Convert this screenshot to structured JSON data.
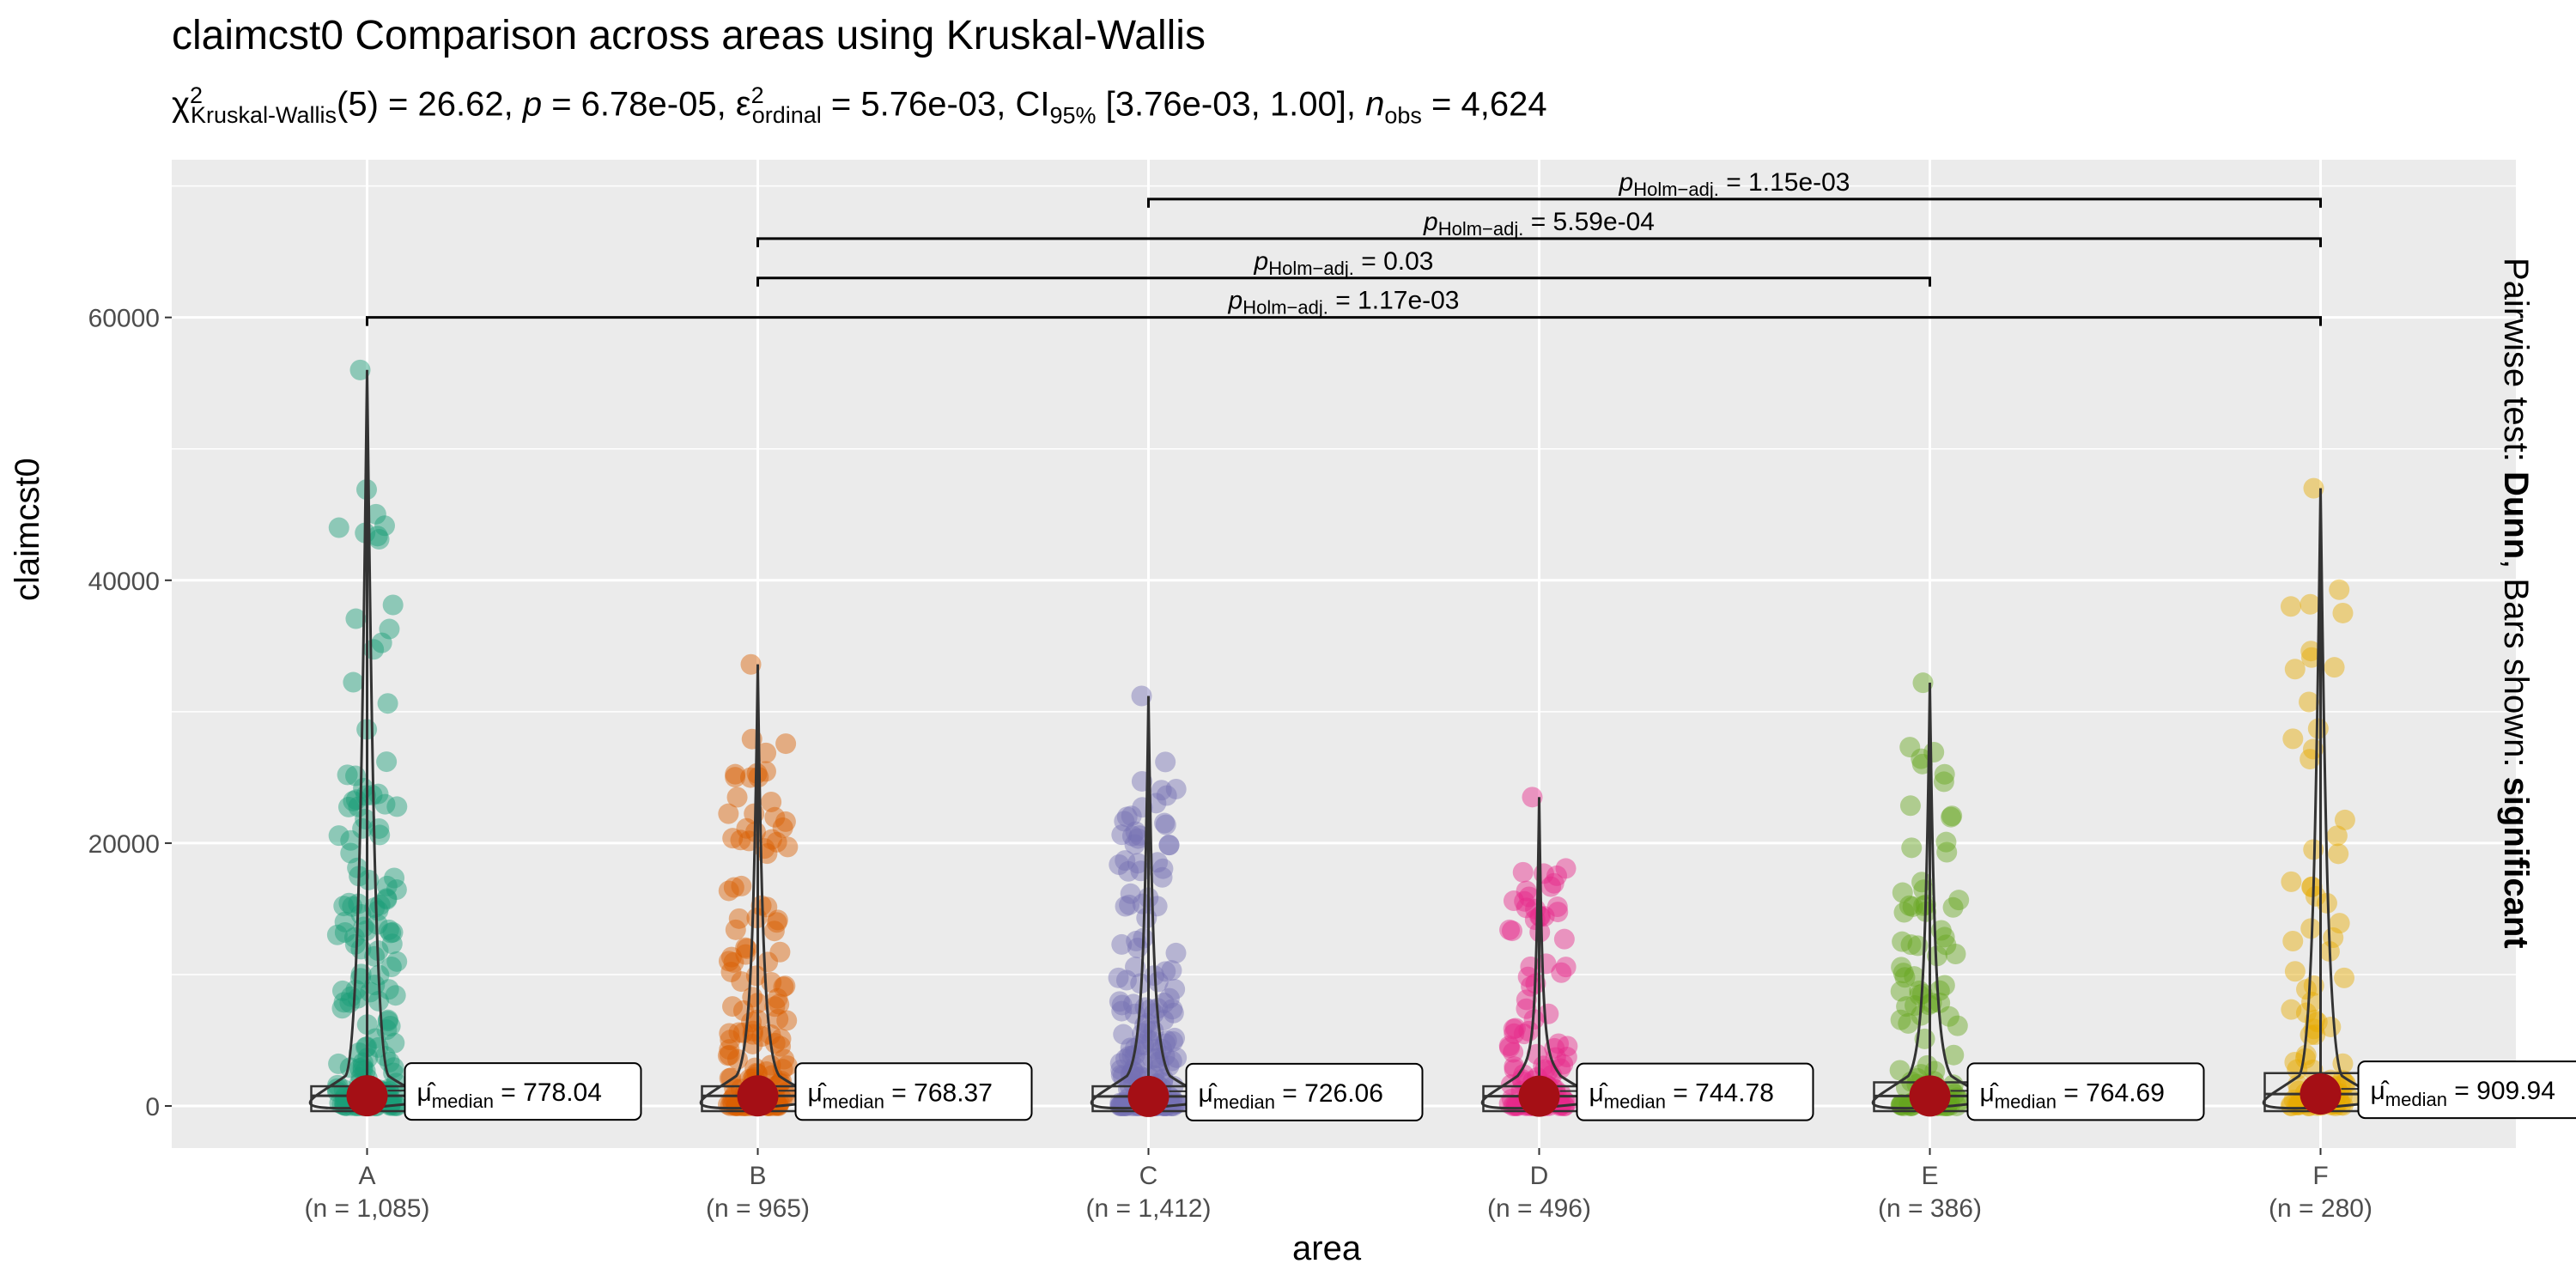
{
  "chart_data": {
    "type": "violin-box-scatter",
    "title": "claimcst0 Comparison across areas using Kruskal-Wallis",
    "subtitle": {
      "chi_symbol": "χ",
      "chi_sub": "Kruskal-Wallis",
      "chi_sup": "2",
      "chi_rest": "(5) = 26.62, ",
      "p_sym": "p",
      "p_rest": " = 6.78e-05, ",
      "eps_sym": "ε",
      "eps_sub": "ordinal",
      "eps_sup": "2",
      "eps_rest": " = 5.76e-03, CI",
      "ci_sub": "95%",
      "ci_rest": " [3.76e-03, 1.00], ",
      "n_sym": "n",
      "n_sub": "obs",
      "n_rest": " = 4,624"
    },
    "xlabel": "area",
    "ylabel": "claimcst0",
    "ylim": [
      -3200,
      72000
    ],
    "yticks": [
      0,
      20000,
      40000,
      60000
    ],
    "ytick_labels": [
      "0",
      "20000",
      "40000",
      "60000"
    ],
    "grid": true,
    "caption": {
      "prefix": "Pairwise test: ",
      "test": "Dunn",
      "middle": ", Bars shown: ",
      "shown": "significant"
    },
    "groups": [
      {
        "name": "A",
        "n_label": "(n = 1,085)",
        "color": "#1B9E77",
        "median": 778.04,
        "label_median": "778.04",
        "max": 56000,
        "q3": 1500
      },
      {
        "name": "B",
        "n_label": "(n = 965)",
        "color": "#D95F02",
        "median": 768.37,
        "label_median": "768.37",
        "max": 33600,
        "q3": 1500
      },
      {
        "name": "C",
        "n_label": "(n = 1,412)",
        "color": "#7570B3",
        "median": 726.06,
        "label_median": "726.06",
        "max": 31200,
        "q3": 1500
      },
      {
        "name": "D",
        "n_label": "(n = 496)",
        "color": "#E7298A",
        "median": 744.78,
        "label_median": "744.78",
        "max": 23500,
        "q3": 1500
      },
      {
        "name": "E",
        "n_label": "(n = 386)",
        "color": "#66A61E",
        "median": 764.69,
        "label_median": "764.69",
        "max": 32200,
        "q3": 1800
      },
      {
        "name": "F",
        "n_label": "(n = 280)",
        "color": "#E6AB02",
        "median": 909.94,
        "label_median": "909.94",
        "max": 47000,
        "q3": 2500
      }
    ],
    "median_label_prefix": "μ",
    "median_label_sub": "median",
    "median_point_color": "#A50F15",
    "pairwise": [
      {
        "from": "A",
        "to": "F",
        "y": 60000,
        "p_label": "1.17e-03"
      },
      {
        "from": "B",
        "to": "E",
        "y": 63000,
        "p_label": "0.03"
      },
      {
        "from": "B",
        "to": "F",
        "y": 66000,
        "p_label": "5.59e-04"
      },
      {
        "from": "C",
        "to": "F",
        "y": 69000,
        "p_label": "1.15e-03"
      }
    ],
    "pairwise_label_sym": "p",
    "pairwise_label_sub": "Holm−adj."
  }
}
